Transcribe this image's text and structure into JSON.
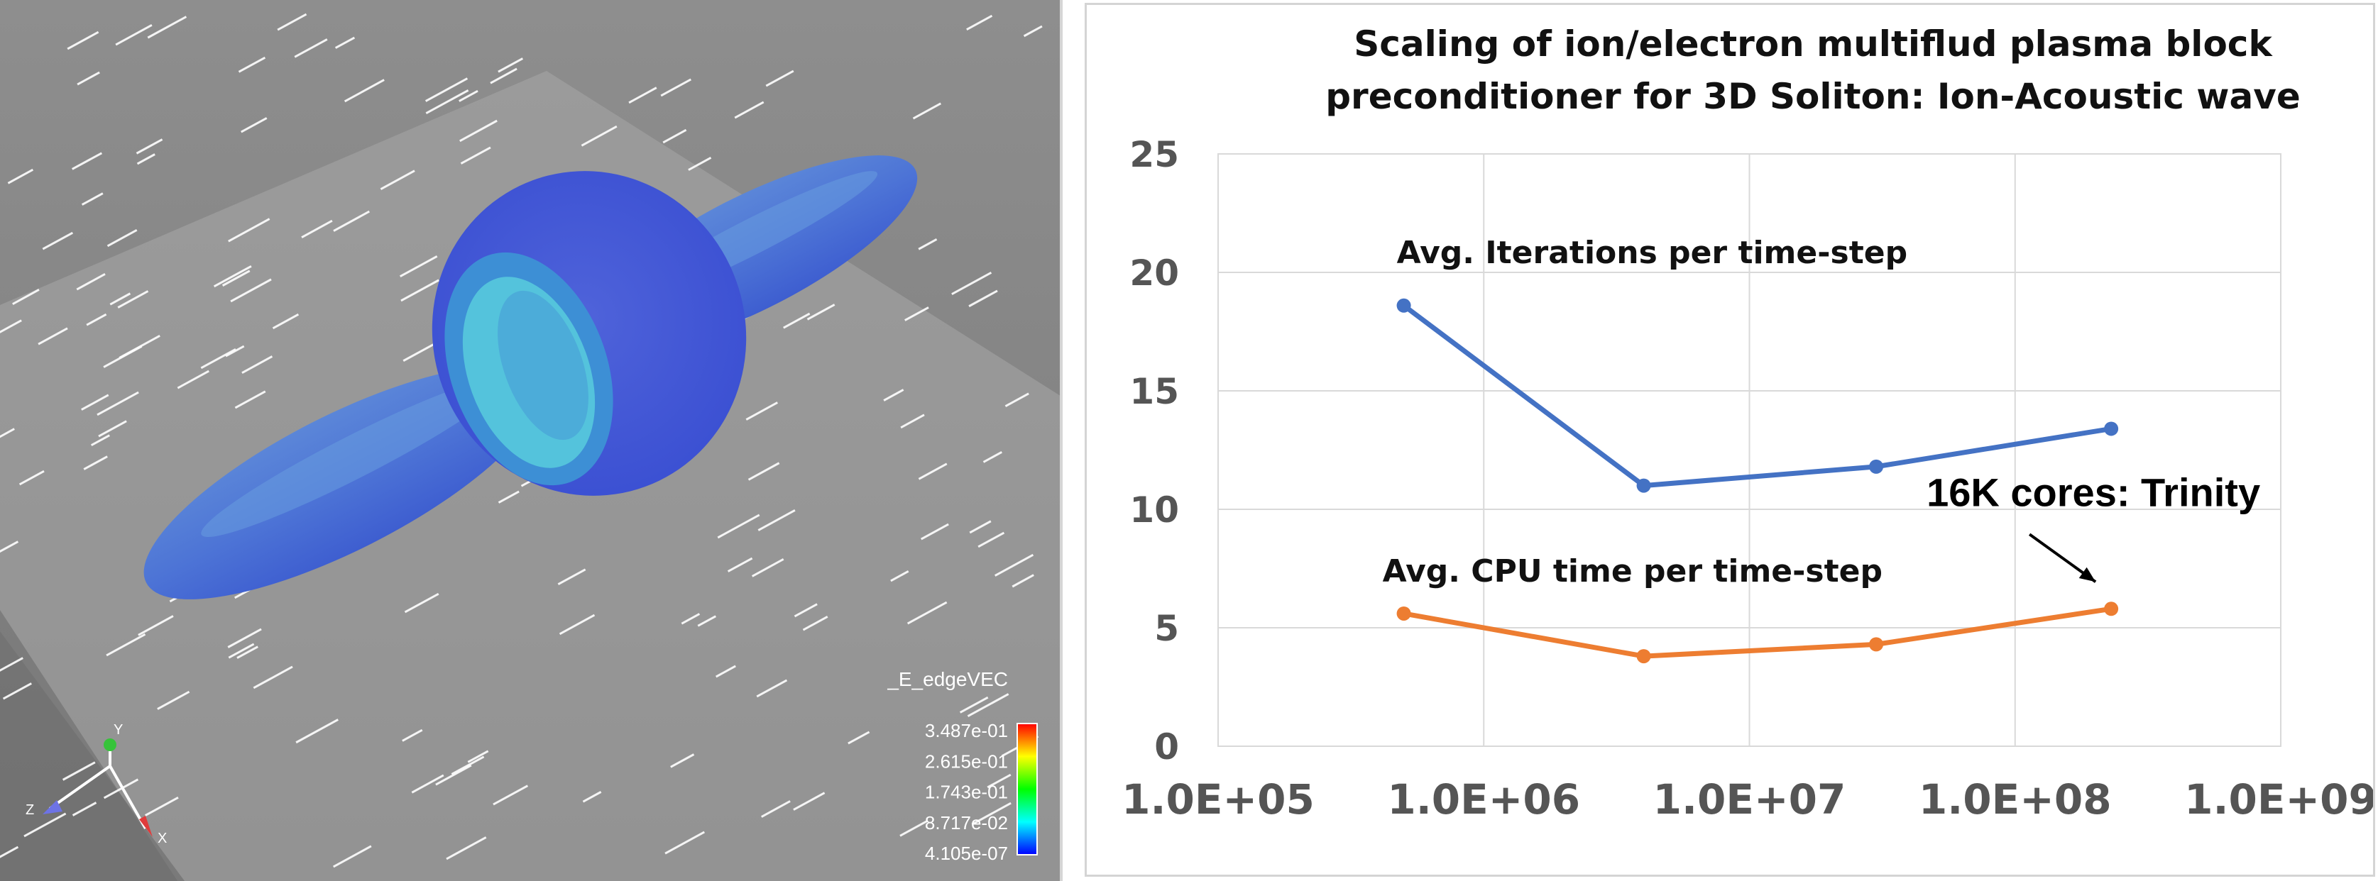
{
  "visualization": {
    "colorbar": {
      "title": "_E_edgeVEC",
      "ticks": [
        "3.487e-01",
        "2.615e-01",
        "1.743e-01",
        "8.717e-02",
        "4.105e-07"
      ]
    },
    "axes_triad": {
      "x": "X",
      "y": "Y",
      "z": "Z"
    }
  },
  "chart_data": {
    "type": "line",
    "title": "Scaling of ion/electron multiflud plasma block preconditioner for 3D Soliton: Ion-Acoustic wave",
    "title_lines": [
      "Scaling of ion/electron multiflud plasma block",
      "preconditioner for 3D Soliton: Ion-Acoustic wave"
    ],
    "xscale": "log",
    "xlim": [
      100000,
      1000000000
    ],
    "ylim": [
      0,
      25
    ],
    "xticks": [
      "1.0E+05",
      "1.0E+06",
      "1.0E+07",
      "1.0E+08",
      "1.0E+09"
    ],
    "yticks": [
      "0",
      "5",
      "10",
      "15",
      "20",
      "25"
    ],
    "grid": true,
    "series": [
      {
        "name": "Avg. Iterations per time-step",
        "color": "#4472C4",
        "x": [
          500000,
          4000000,
          30000000,
          230000000
        ],
        "y": [
          18.6,
          11.0,
          11.8,
          13.4
        ]
      },
      {
        "name": "Avg. CPU time per time-step",
        "color": "#ED7D31",
        "x": [
          500000,
          4000000,
          30000000,
          230000000
        ],
        "y": [
          5.6,
          3.8,
          4.3,
          5.8
        ]
      }
    ],
    "annotation": {
      "text": "16K cores: Trinity",
      "points_to_series": 1,
      "points_to_index": 3
    }
  }
}
